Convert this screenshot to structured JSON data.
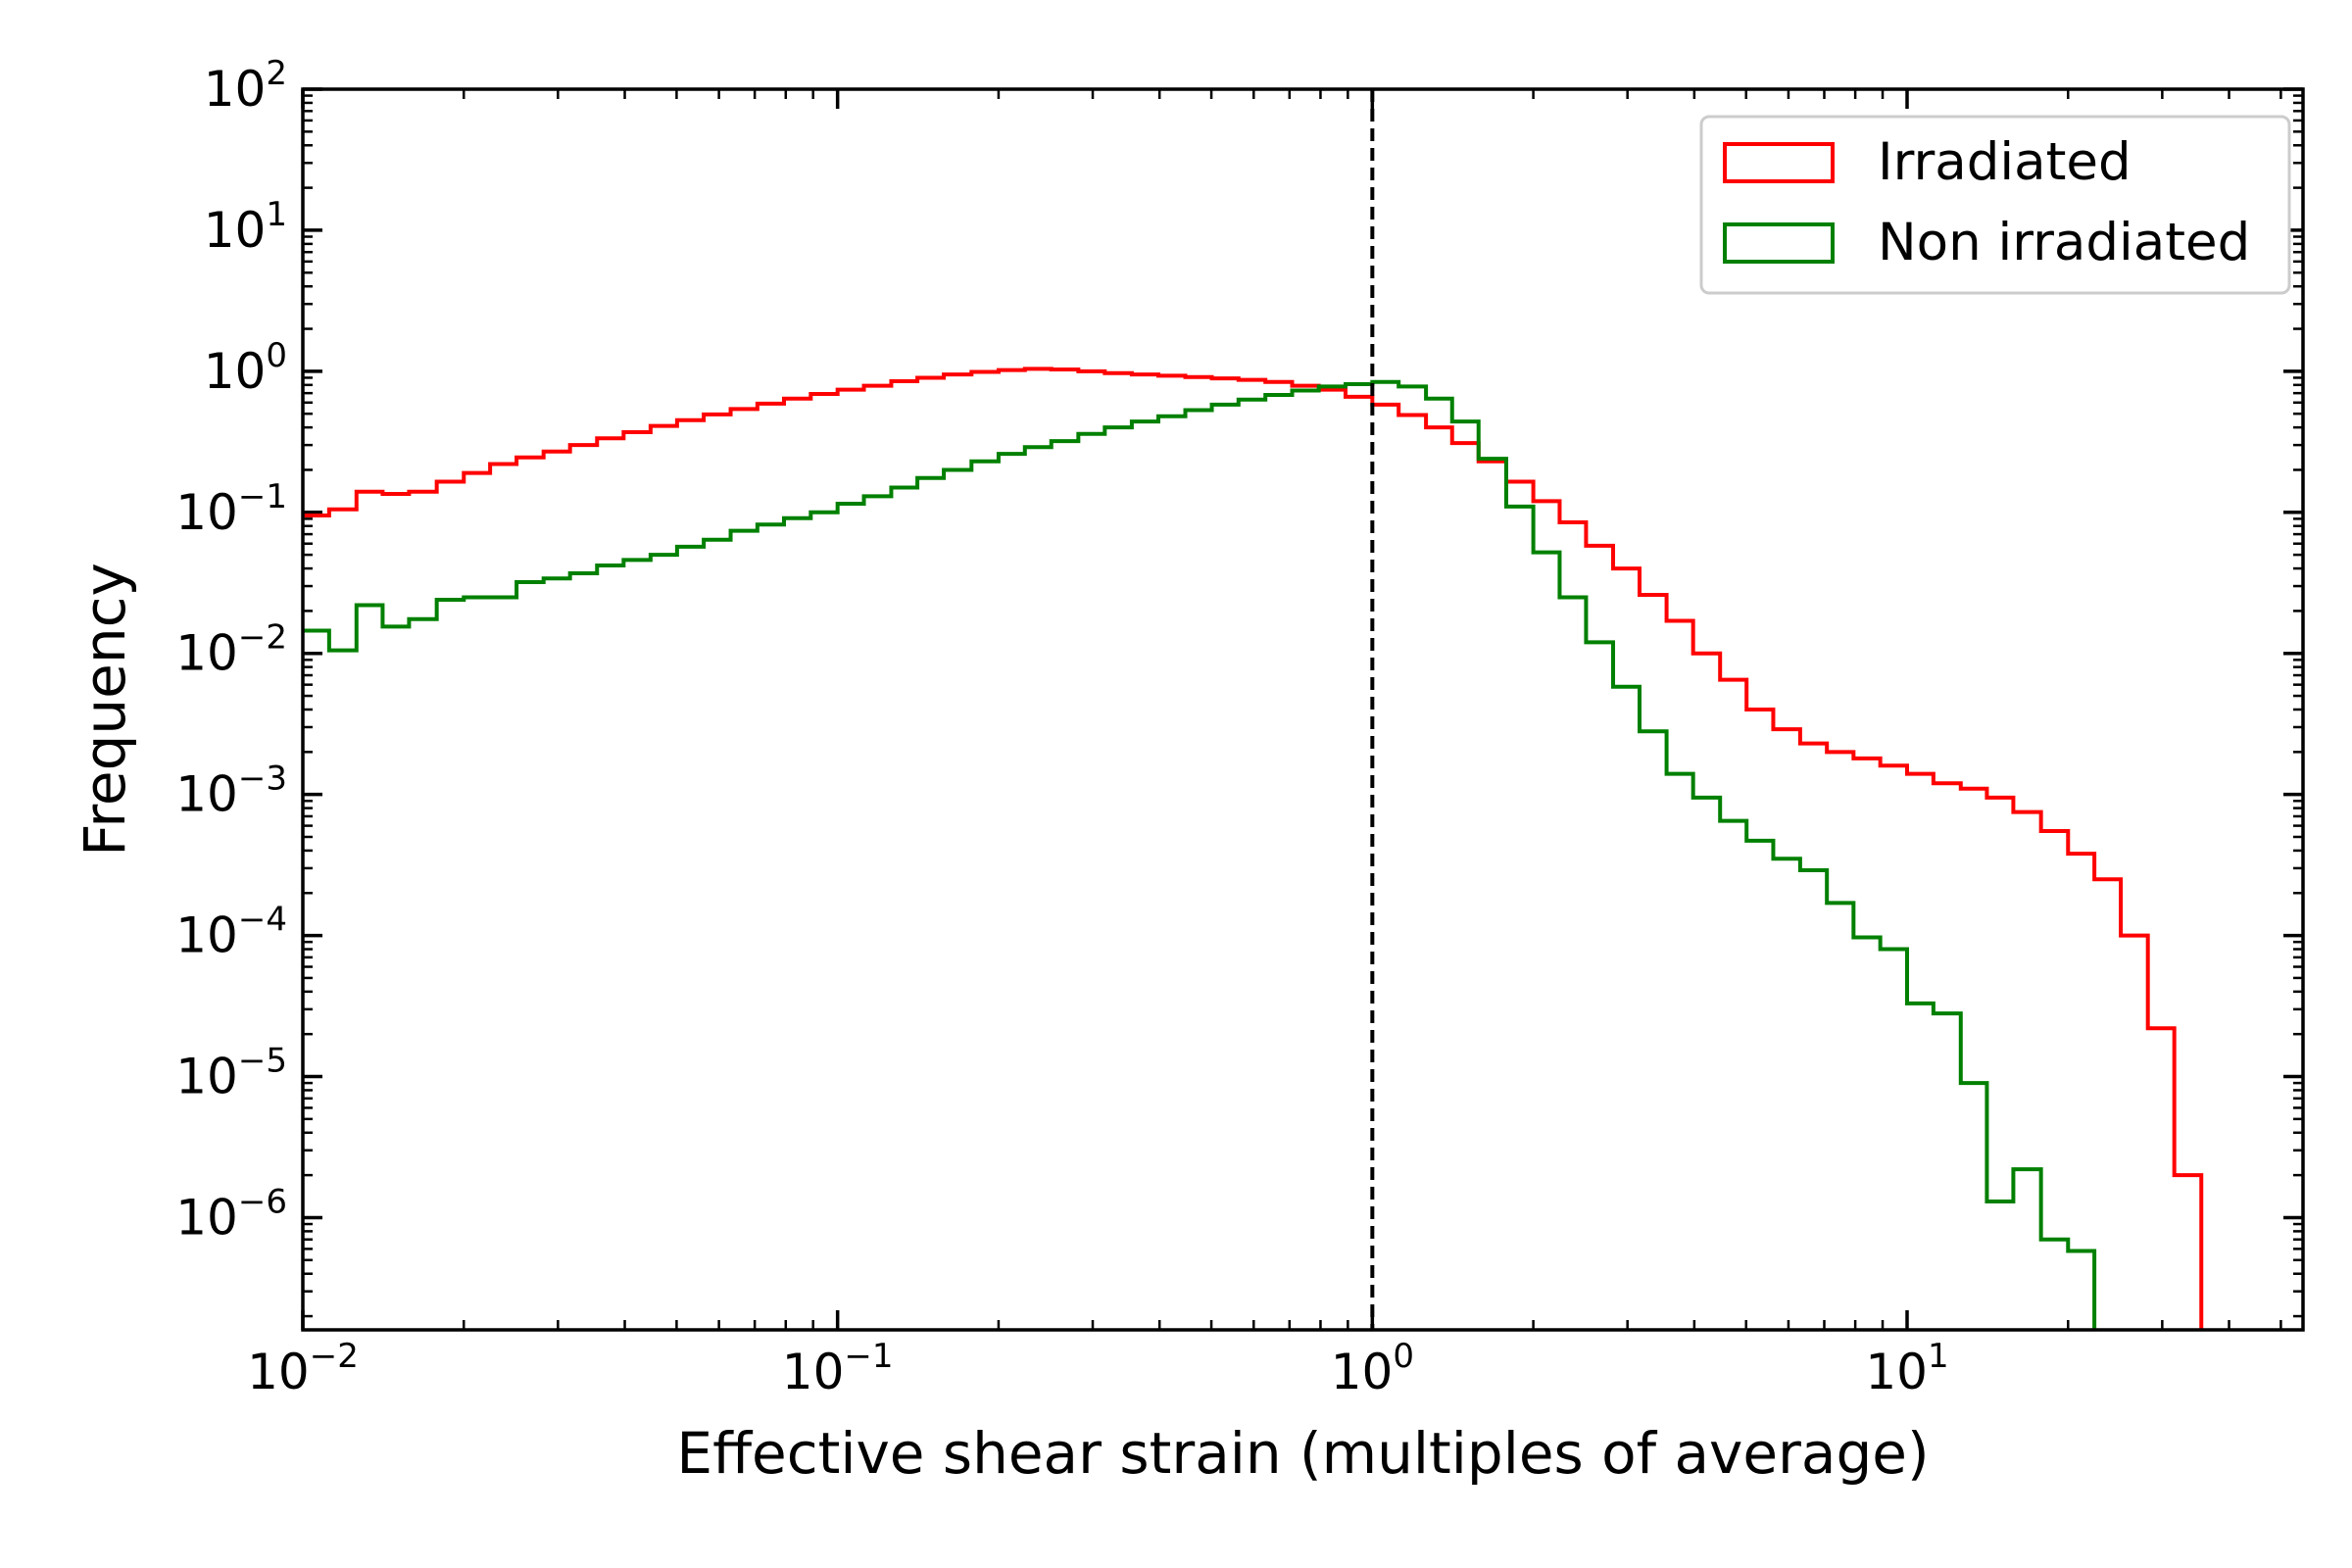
{
  "chart_data": {
    "type": "line",
    "subtype": "step-histogram",
    "title": "",
    "xlabel": "Effective shear strain (multiples of average)",
    "ylabel": "Frequency",
    "xscale": "log",
    "yscale": "log",
    "xlim": [
      0.01,
      55
    ],
    "ylim": [
      1.6e-07,
      100
    ],
    "x_ticks": [
      {
        "value": 0.01,
        "base": "10",
        "exp": "−2"
      },
      {
        "value": 0.1,
        "base": "10",
        "exp": "−1"
      },
      {
        "value": 1,
        "base": "10",
        "exp": "0"
      },
      {
        "value": 10,
        "base": "10",
        "exp": "1"
      }
    ],
    "y_ticks": [
      {
        "value": 1e-06,
        "base": "10",
        "exp": "−6"
      },
      {
        "value": 1e-05,
        "base": "10",
        "exp": "−5"
      },
      {
        "value": 0.0001,
        "base": "10",
        "exp": "−4"
      },
      {
        "value": 0.001,
        "base": "10",
        "exp": "−3"
      },
      {
        "value": 0.01,
        "base": "10",
        "exp": "−2"
      },
      {
        "value": 0.1,
        "base": "10",
        "exp": "−1"
      },
      {
        "value": 1,
        "base": "10",
        "exp": "0"
      },
      {
        "value": 10,
        "base": "10",
        "exp": "1"
      },
      {
        "value": 100,
        "base": "10",
        "exp": "2"
      }
    ],
    "reference_line": {
      "x": 1,
      "style": "dashed",
      "color": "#000000"
    },
    "legend": {
      "position": "top-right"
    },
    "grid": false,
    "series": [
      {
        "name": "Irradiated",
        "color": "#ff0000",
        "bin_edges": [
          0.01,
          0.0112,
          0.0126,
          0.0141,
          0.0158,
          0.0178,
          0.02,
          0.0224,
          0.0251,
          0.0282,
          0.0316,
          0.0355,
          0.0398,
          0.0447,
          0.0501,
          0.0562,
          0.0631,
          0.0708,
          0.0794,
          0.0891,
          0.1,
          0.112,
          0.126,
          0.141,
          0.158,
          0.178,
          0.2,
          0.224,
          0.251,
          0.282,
          0.316,
          0.355,
          0.398,
          0.447,
          0.501,
          0.562,
          0.631,
          0.708,
          0.794,
          0.891,
          1.0,
          1.12,
          1.26,
          1.41,
          1.58,
          1.78,
          2.0,
          2.24,
          2.51,
          2.82,
          3.16,
          3.55,
          3.98,
          4.47,
          5.01,
          5.62,
          6.31,
          7.08,
          7.94,
          8.91,
          10.0,
          11.2,
          12.6,
          14.1,
          15.8,
          17.8,
          20.0,
          22.4,
          25.1,
          28.2,
          31.6,
          35.5
        ],
        "values": [
          0.095,
          0.105,
          0.14,
          0.135,
          0.14,
          0.165,
          0.19,
          0.22,
          0.245,
          0.27,
          0.3,
          0.335,
          0.37,
          0.41,
          0.45,
          0.495,
          0.54,
          0.59,
          0.64,
          0.69,
          0.74,
          0.79,
          0.85,
          0.9,
          0.95,
          0.99,
          1.02,
          1.04,
          1.03,
          1.0,
          0.97,
          0.95,
          0.93,
          0.91,
          0.89,
          0.87,
          0.84,
          0.79,
          0.74,
          0.66,
          0.58,
          0.49,
          0.4,
          0.31,
          0.23,
          0.165,
          0.12,
          0.085,
          0.058,
          0.04,
          0.026,
          0.017,
          0.01,
          0.0065,
          0.004,
          0.0029,
          0.0023,
          0.002,
          0.0018,
          0.0016,
          0.0014,
          0.0012,
          0.0011,
          0.00095,
          0.00075,
          0.00055,
          0.00038,
          0.00025,
          0.0001,
          2.2e-05,
          2e-06
        ]
      },
      {
        "name": "Non irradiated",
        "color": "#008000",
        "bin_edges": [
          0.01,
          0.0112,
          0.0126,
          0.0141,
          0.0158,
          0.0178,
          0.02,
          0.0224,
          0.0251,
          0.0282,
          0.0316,
          0.0355,
          0.0398,
          0.0447,
          0.0501,
          0.0562,
          0.0631,
          0.0708,
          0.0794,
          0.0891,
          0.1,
          0.112,
          0.126,
          0.141,
          0.158,
          0.178,
          0.2,
          0.224,
          0.251,
          0.282,
          0.316,
          0.355,
          0.398,
          0.447,
          0.501,
          0.562,
          0.631,
          0.708,
          0.794,
          0.891,
          1.0,
          1.12,
          1.26,
          1.41,
          1.58,
          1.78,
          2.0,
          2.24,
          2.51,
          2.82,
          3.16,
          3.55,
          3.98,
          4.47,
          5.01,
          5.62,
          6.31,
          7.08,
          7.94,
          8.91,
          10.0,
          11.2,
          12.6,
          14.1,
          15.8,
          17.8,
          20.0,
          22.4
        ],
        "values": [
          0.0145,
          0.0105,
          0.022,
          0.0155,
          0.0175,
          0.024,
          0.025,
          0.025,
          0.032,
          0.034,
          0.037,
          0.042,
          0.046,
          0.05,
          0.057,
          0.064,
          0.074,
          0.082,
          0.091,
          0.1,
          0.115,
          0.13,
          0.15,
          0.175,
          0.2,
          0.23,
          0.26,
          0.29,
          0.32,
          0.36,
          0.4,
          0.44,
          0.48,
          0.53,
          0.58,
          0.63,
          0.68,
          0.73,
          0.78,
          0.81,
          0.84,
          0.78,
          0.64,
          0.44,
          0.24,
          0.11,
          0.052,
          0.025,
          0.012,
          0.0058,
          0.0028,
          0.0014,
          0.00095,
          0.00065,
          0.00047,
          0.00035,
          0.00029,
          0.00017,
          9.7e-05,
          8e-05,
          3.3e-05,
          2.8e-05,
          9e-06,
          1.3e-06,
          2.2e-06,
          7e-07,
          5.8e-07
        ]
      }
    ]
  }
}
